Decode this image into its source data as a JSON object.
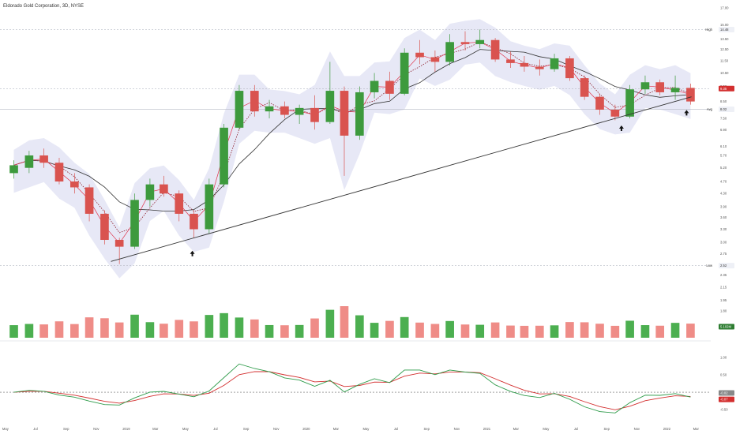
{
  "header": {
    "title": "Eldorado Gold Corporation, 3D, NYSE"
  },
  "colors": {
    "up": "#3d9a3d",
    "down": "#d9534f",
    "vol_up": "#4caf50",
    "vol_down": "#ef8c87",
    "band_fill": "#e7e8f6",
    "ma_fast": "#e0324a",
    "ma_mid": "#8e1f2c",
    "ma_slow": "#333333",
    "macd": "#2e9b4a",
    "signal": "#d32f2f",
    "trendline": "#333333",
    "price_tag": "#d32f2f",
    "volume_tag": "#2e7d32"
  },
  "chart_data": {
    "type": "candlestick",
    "title": "Eldorado Gold Corporation, 3D, NYSE",
    "x_tick_labels": [
      "May",
      "Jul",
      "Sep",
      "Nov",
      "2019",
      "Mar",
      "May",
      "Jul",
      "Sep",
      "Nov",
      "2020",
      "Mar",
      "May",
      "Jul",
      "Sep",
      "Nov",
      "2021",
      "Mar",
      "May",
      "Jul",
      "Sep",
      "Nov",
      "2022",
      "Mar"
    ],
    "y_price_ticks": [
      {
        "label": "20.00",
        "value": 20.0
      },
      {
        "label": "17.00",
        "value": 17.0
      },
      {
        "label": "15.00",
        "value": 15.0
      },
      {
        "label": "13.50",
        "value": 13.5
      },
      {
        "label": "12.50",
        "value": 12.5
      },
      {
        "label": "11.50",
        "value": 11.5
      },
      {
        "label": "10.50",
        "value": 10.5
      },
      {
        "label": "9.50",
        "value": 9.5
      },
      {
        "label": "8.50",
        "value": 8.5
      },
      {
        "label": "7.50",
        "value": 7.5
      },
      {
        "label": "6.90",
        "value": 6.9
      },
      {
        "label": "6.10",
        "value": 6.1
      },
      {
        "label": "5.70",
        "value": 5.7
      },
      {
        "label": "5.20",
        "value": 5.2
      },
      {
        "label": "4.70",
        "value": 4.7
      },
      {
        "label": "4.30",
        "value": 4.3
      },
      {
        "label": "3.90",
        "value": 3.9
      },
      {
        "label": "3.60",
        "value": 3.6
      },
      {
        "label": "3.30",
        "value": 3.3
      },
      {
        "label": "3.00",
        "value": 3.0
      },
      {
        "label": "2.75",
        "value": 2.75
      },
      {
        "label": "2.52",
        "value": 2.52
      },
      {
        "label": "2.35",
        "value": 2.35
      },
      {
        "label": "2.15",
        "value": 2.15
      },
      {
        "label": "1.95",
        "value": 1.95
      },
      {
        "label": "1.80",
        "value": 1.8
      }
    ],
    "level_tags": [
      {
        "label": "High",
        "value": "14.48",
        "price": 14.48
      },
      {
        "label": "",
        "value": "9.35",
        "price": 9.35
      },
      {
        "label": "Avg",
        "value": "8.02",
        "price": 8.02
      },
      {
        "label": "Low",
        "value": "2.52",
        "price": 2.52
      }
    ],
    "volume_last": "5.102M",
    "macd_ticks": [
      {
        "label": "1.00",
        "value": 1.0
      },
      {
        "label": "0.50",
        "value": 0.5
      },
      {
        "label": "0.00",
        "value": 0.0
      },
      {
        "label": "-0.50",
        "value": -0.5
      }
    ],
    "macd_last": "-0.02",
    "signal_last": "-0.07",
    "candles": [
      [
        "2018-05-01",
        5.0,
        5.5,
        4.8,
        5.3
      ],
      [
        "2018-06-01",
        5.2,
        5.9,
        5.0,
        5.7
      ],
      [
        "2018-07-01",
        5.7,
        6.0,
        5.2,
        5.4
      ],
      [
        "2018-08-01",
        5.4,
        5.6,
        4.6,
        4.7
      ],
      [
        "2018-09-01",
        4.7,
        5.0,
        4.3,
        4.5
      ],
      [
        "2018-10-01",
        4.5,
        4.6,
        3.5,
        3.7
      ],
      [
        "2018-11-01",
        3.7,
        3.8,
        2.95,
        3.05
      ],
      [
        "2018-12-01",
        3.05,
        3.1,
        2.55,
        2.9
      ],
      [
        "2019-01-01",
        2.9,
        4.3,
        2.85,
        4.1
      ],
      [
        "2019-02-01",
        4.1,
        4.8,
        3.9,
        4.6
      ],
      [
        "2019-03-01",
        4.6,
        4.9,
        4.2,
        4.3
      ],
      [
        "2019-04-01",
        4.3,
        4.4,
        3.5,
        3.7
      ],
      [
        "2019-05-01",
        3.7,
        3.8,
        3.1,
        3.3
      ],
      [
        "2019-06-01",
        3.3,
        4.8,
        3.2,
        4.6
      ],
      [
        "2019-07-01",
        4.6,
        7.2,
        4.5,
        7.0
      ],
      [
        "2019-08-01",
        7.0,
        9.6,
        6.9,
        9.2
      ],
      [
        "2019-09-01",
        9.2,
        9.6,
        7.6,
        7.9
      ],
      [
        "2019-10-01",
        7.9,
        8.6,
        7.5,
        8.2
      ],
      [
        "2019-11-01",
        8.2,
        8.5,
        7.5,
        7.7
      ],
      [
        "2019-12-01",
        7.7,
        8.3,
        7.2,
        8.1
      ],
      [
        "2020-01-01",
        8.1,
        8.9,
        6.9,
        7.3
      ],
      [
        "2020-02-01",
        7.3,
        11.4,
        7.2,
        9.2
      ],
      [
        "2020-03-01",
        9.2,
        9.5,
        4.9,
        6.6
      ],
      [
        "2020-04-01",
        6.6,
        9.5,
        6.4,
        9.1
      ],
      [
        "2020-05-01",
        9.1,
        10.5,
        8.7,
        9.9
      ],
      [
        "2020-06-01",
        9.9,
        10.6,
        8.6,
        9.0
      ],
      [
        "2020-07-01",
        9.0,
        12.6,
        8.9,
        12.2
      ],
      [
        "2020-08-01",
        12.2,
        13.4,
        11.2,
        11.8
      ],
      [
        "2020-09-01",
        11.8,
        12.4,
        10.6,
        11.4
      ],
      [
        "2020-10-01",
        11.4,
        14.0,
        11.1,
        13.2
      ],
      [
        "2020-11-01",
        13.2,
        14.3,
        12.4,
        13.0
      ],
      [
        "2020-12-01",
        13.0,
        14.48,
        12.6,
        13.4
      ],
      [
        "2021-01-01",
        13.4,
        13.6,
        11.4,
        11.6
      ],
      [
        "2021-02-01",
        11.6,
        12.3,
        10.9,
        11.3
      ],
      [
        "2021-03-01",
        11.3,
        11.9,
        10.6,
        11.0
      ],
      [
        "2021-04-01",
        11.0,
        11.6,
        10.3,
        10.8
      ],
      [
        "2021-05-01",
        10.8,
        12.1,
        10.6,
        11.7
      ],
      [
        "2021-06-01",
        11.7,
        11.9,
        9.9,
        10.1
      ],
      [
        "2021-07-01",
        10.1,
        10.3,
        8.6,
        8.8
      ],
      [
        "2021-08-01",
        8.8,
        9.0,
        7.7,
        8.0
      ],
      [
        "2021-09-01",
        8.0,
        8.3,
        7.4,
        7.6
      ],
      [
        "2021-10-01",
        7.6,
        9.6,
        7.5,
        9.3
      ],
      [
        "2021-11-01",
        9.3,
        10.3,
        9.0,
        9.8
      ],
      [
        "2021-12-01",
        9.8,
        10.0,
        8.9,
        9.1
      ],
      [
        "2022-01-01",
        9.1,
        10.3,
        8.6,
        9.4
      ],
      [
        "2022-02-01",
        9.4,
        9.7,
        8.3,
        8.5
      ]
    ],
    "trendline": {
      "from": [
        "2018-12-01",
        2.6
      ],
      "to": [
        "2022-02-20",
        8.8
      ]
    },
    "arrows": [
      {
        "date": "2019-05-15",
        "price": 2.75
      },
      {
        "date": "2021-10-01",
        "price": 6.95
      },
      {
        "date": "2022-02-10",
        "price": 7.8
      }
    ]
  }
}
